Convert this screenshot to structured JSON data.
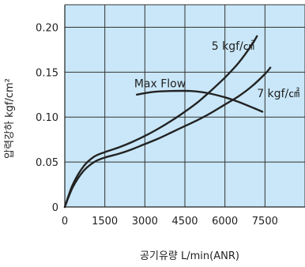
{
  "chart_data": {
    "type": "line",
    "title": "",
    "xlabel": "공기유량 L/min(ANR)",
    "ylabel": "압력강하 kgf/cm²",
    "xlim": [
      0,
      9000
    ],
    "ylim": [
      0,
      0.225
    ],
    "x_ticks": [
      "0",
      "1500",
      "3000",
      "4500",
      "6000",
      "7500"
    ],
    "y_ticks": [
      "0",
      "0.05",
      "0.10",
      "0.15",
      "0.20"
    ],
    "grid": true,
    "background": "#c9e7f8",
    "series": [
      {
        "name": "5 kgf/㎠",
        "color": "#222222",
        "x": [
          0,
          300,
          700,
          1100,
          1500,
          2000,
          2500,
          3000,
          3500,
          4000,
          4500,
          5000,
          5500,
          6000,
          6500,
          7000,
          7200
        ],
        "y": [
          0,
          0.025,
          0.045,
          0.056,
          0.061,
          0.066,
          0.072,
          0.079,
          0.087,
          0.096,
          0.106,
          0.117,
          0.13,
          0.144,
          0.16,
          0.18,
          0.19
        ]
      },
      {
        "name": "7 kgf/㎠",
        "color": "#222222",
        "x": [
          0,
          300,
          700,
          1100,
          1500,
          2000,
          2500,
          3000,
          3500,
          4000,
          4500,
          5000,
          5500,
          6000,
          6500,
          7000,
          7500,
          7700
        ],
        "y": [
          0,
          0.022,
          0.04,
          0.05,
          0.055,
          0.059,
          0.064,
          0.07,
          0.076,
          0.083,
          0.09,
          0.097,
          0.105,
          0.114,
          0.123,
          0.134,
          0.148,
          0.155
        ]
      },
      {
        "name": "Max Flow",
        "color": "#222222",
        "x": [
          2700,
          3300,
          4000,
          4700,
          5300,
          6000,
          6500,
          7000,
          7400
        ],
        "y": [
          0.125,
          0.128,
          0.129,
          0.129,
          0.127,
          0.122,
          0.117,
          0.111,
          0.106
        ]
      }
    ],
    "annotations": [
      {
        "text": "5 kgf/㎠",
        "x": 5500,
        "y": 0.175
      },
      {
        "text": "Max Flow",
        "x": 2600,
        "y": 0.133
      },
      {
        "text": "7 kgf/㎠",
        "x": 7200,
        "y": 0.122
      }
    ]
  }
}
